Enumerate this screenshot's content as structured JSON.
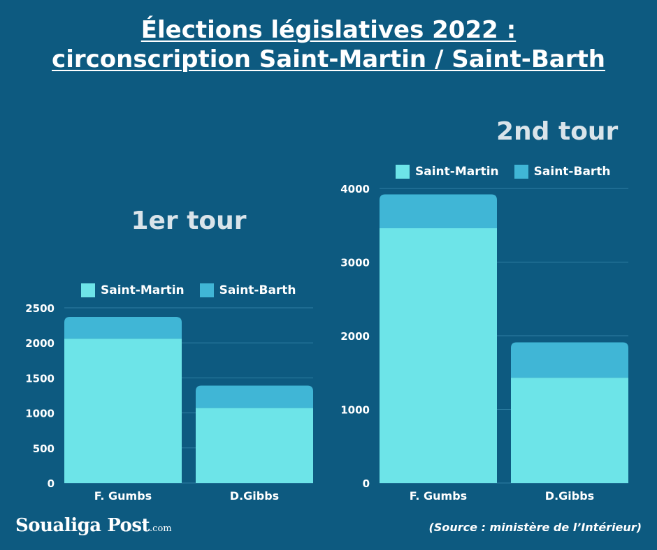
{
  "title_line1": "Élections législatives 2022 :",
  "title_line2": "circonscription Saint-Martin / Saint-Barth",
  "colors": {
    "background": "#0d5a80",
    "saint_martin": "#6de4e8",
    "saint_barth": "#40b6d6",
    "grid": "#2f7fa3"
  },
  "logo": {
    "name": "Soualiga Post",
    "suffix": ".com"
  },
  "source": "(Source : ministère de l’Intérieur)",
  "chart_data": [
    {
      "type": "bar",
      "stacked": true,
      "title": "1er tour",
      "categories": [
        "F. Gumbs",
        "D.Gibbs"
      ],
      "series": [
        {
          "name": "Saint-Martin",
          "values": [
            2060,
            1070
          ]
        },
        {
          "name": "Saint-Barth",
          "values": [
            310,
            320
          ]
        }
      ],
      "ylim": [
        0,
        2500
      ],
      "yticks": [
        0,
        500,
        1000,
        1500,
        2000,
        2500
      ],
      "legend": "top",
      "grid": true
    },
    {
      "type": "bar",
      "stacked": true,
      "title": "2nd tour",
      "categories": [
        "F. Gumbs",
        "D.Gibbs"
      ],
      "series": [
        {
          "name": "Saint-Martin",
          "values": [
            3460,
            1430
          ]
        },
        {
          "name": "Saint-Barth",
          "values": [
            460,
            480
          ]
        }
      ],
      "ylim": [
        0,
        4000
      ],
      "yticks": [
        0,
        1000,
        2000,
        3000,
        4000
      ],
      "legend": "top",
      "grid": true
    }
  ]
}
